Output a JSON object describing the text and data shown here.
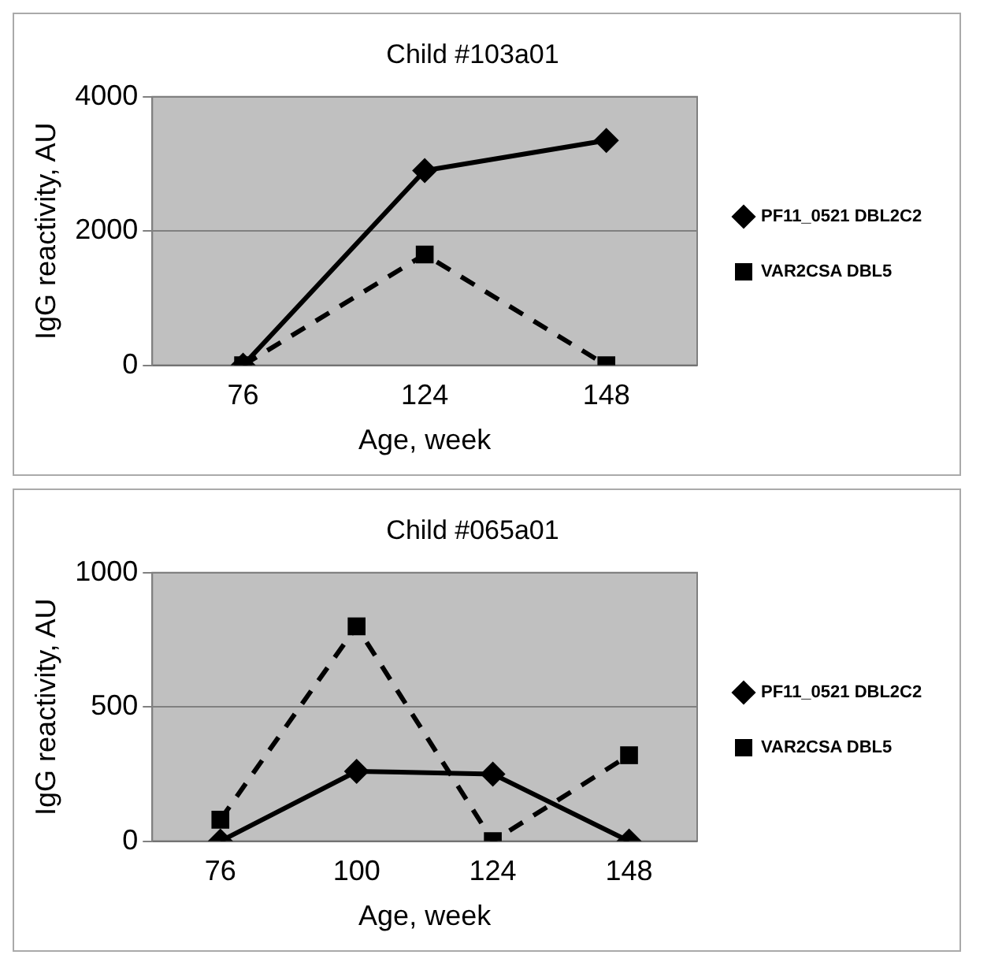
{
  "chart_data": [
    {
      "type": "line",
      "title": "Child #103a01",
      "xlabel": "Age, week",
      "ylabel": "IgG reactivity, AU",
      "categories": [
        "76",
        "124",
        "148"
      ],
      "ylim": [
        0,
        4000
      ],
      "yticks": [
        0,
        2000,
        4000
      ],
      "grid": "y",
      "legend": "right",
      "series": [
        {
          "name": "PF11_0521 DBL2C2",
          "color": "#000000",
          "marker": "diamond",
          "line_style": "solid",
          "values": [
            0,
            2900,
            3350
          ]
        },
        {
          "name": "VAR2CSA DBL5",
          "color": "#000000",
          "marker": "square",
          "line_style": "dashed",
          "values": [
            0,
            1650,
            0
          ]
        }
      ]
    },
    {
      "type": "line",
      "title": "Child #065a01",
      "xlabel": "Age, week",
      "ylabel": "IgG reactivity, AU",
      "categories": [
        "76",
        "100",
        "124",
        "148"
      ],
      "ylim": [
        0,
        1000
      ],
      "yticks": [
        0,
        500,
        1000
      ],
      "grid": "y",
      "legend": "right",
      "series": [
        {
          "name": "PF11_0521 DBL2C2",
          "color": "#000000",
          "marker": "diamond",
          "line_style": "solid",
          "values": [
            0,
            260,
            250,
            0
          ]
        },
        {
          "name": "VAR2CSA DBL5",
          "color": "#000000",
          "marker": "square",
          "line_style": "dashed",
          "values": [
            80,
            800,
            0,
            320
          ]
        }
      ]
    }
  ]
}
